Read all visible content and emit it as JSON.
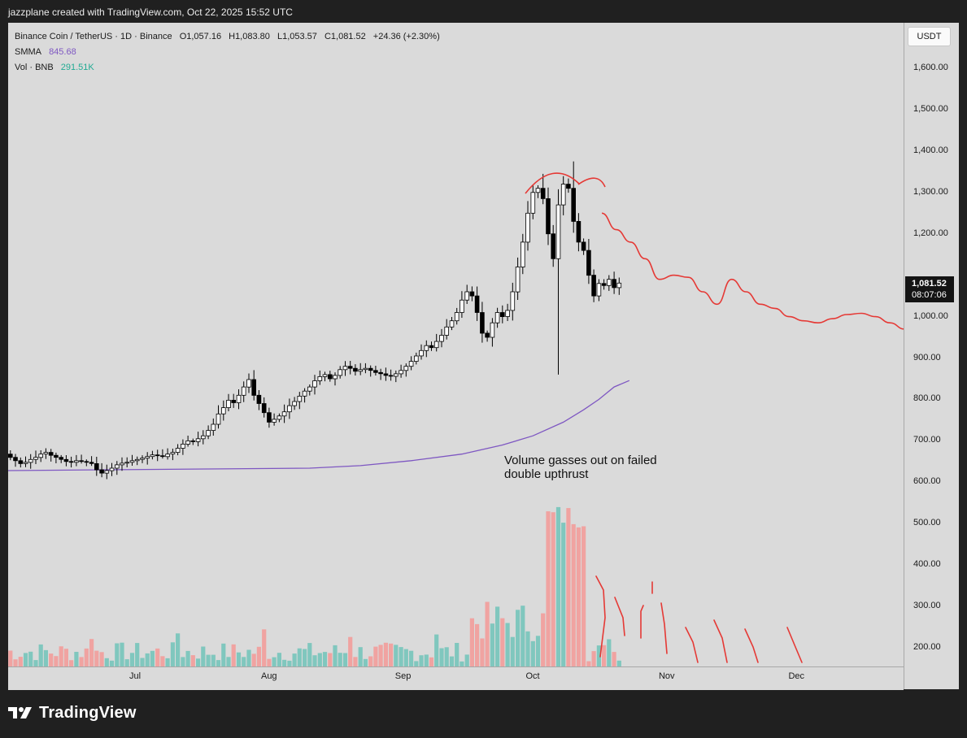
{
  "header": {
    "credit": "jazzplane created with TradingView.com, Oct 22, 2025 15:52 UTC"
  },
  "legend": {
    "symbol": "Binance Coin / TetherUS · 1D · Binance",
    "o": "O1,057.16",
    "h": "H1,083.80",
    "l": "L1,053.57",
    "c": "C1,081.52",
    "chg": "+24.36 (+2.30%)",
    "smma_label": "SMMA",
    "smma_value": "845.68",
    "vol_label": "Vol · BNB",
    "vol_value": "291.51K"
  },
  "currency_button": "USDT",
  "price_tag": {
    "price": "1,081.52",
    "countdown": "08:07:06"
  },
  "annotation": {
    "line1": "Volume gasses out on failed",
    "line2": "double upthrust"
  },
  "footer": {
    "brand": "TradingView"
  },
  "colors": {
    "bull": "#ffffff",
    "bear": "#000000",
    "smma": "#7e57c2",
    "drawing": "#e53935",
    "vol_up": "#80c7be",
    "vol_down": "#f0a3a1",
    "plot_bg": "#dadada"
  },
  "chart_data": {
    "type": "candlestick",
    "symbol": "BNBUSDT",
    "interval": "1D",
    "y_axis": {
      "ticks": [
        200,
        300,
        400,
        500,
        600,
        700,
        800,
        900,
        1000,
        1100,
        1200,
        1300,
        1400,
        1500,
        1600
      ],
      "tick_labels": [
        "200.00",
        "300.00",
        "400.00",
        "500.00",
        "600.00",
        "700.00",
        "800.00",
        "900.00",
        "1,000.00",
        "1,100.00",
        "1,200.00",
        "1,300.00",
        "1,400.00",
        "1,500.00",
        "1,600.00"
      ]
    },
    "x_axis": {
      "labels": [
        {
          "label": "Jul",
          "date": "2025-07-01"
        },
        {
          "label": "Aug",
          "date": "2025-08-01"
        },
        {
          "label": "Sep",
          "date": "2025-09-01"
        },
        {
          "label": "Oct",
          "date": "2025-10-01"
        },
        {
          "label": "Nov",
          "date": "2025-11-01"
        },
        {
          "label": "Dec",
          "date": "2025-12-01"
        }
      ]
    },
    "x_start": "2025-06-01",
    "x_end": "2025-12-31",
    "candles_close_path": [
      668,
      660,
      652,
      645,
      648,
      655,
      660,
      668,
      672,
      665,
      660,
      655,
      650,
      648,
      652,
      650,
      648,
      645,
      630,
      622,
      628,
      634,
      642,
      646,
      648,
      652,
      655,
      658,
      662,
      666,
      664,
      662,
      668,
      672,
      682,
      692,
      700,
      698,
      705,
      712,
      725,
      740,
      765,
      780,
      798,
      792,
      810,
      830,
      848,
      810,
      790,
      768,
      745,
      752,
      760,
      770,
      785,
      795,
      808,
      820,
      830,
      845,
      855,
      860,
      850,
      858,
      872,
      880,
      875,
      868,
      872,
      875,
      870,
      865,
      862,
      858,
      856,
      862,
      870,
      880,
      892,
      905,
      918,
      930,
      925,
      940,
      955,
      975,
      990,
      1010,
      1040,
      1060,
      1050,
      1010,
      960,
      950,
      985,
      1010,
      1000,
      1015,
      1060,
      1120,
      1180,
      1250,
      1300,
      1310,
      1285,
      1200,
      1140,
      1270,
      1320,
      1310,
      1230,
      1180,
      1160,
      1100,
      1050,
      1080,
      1075,
      1090,
      1070,
      1081
    ],
    "smma": {
      "label": "SMMA",
      "last": 845.68,
      "points": [
        [
          0,
          628
        ],
        [
          20,
          630
        ],
        [
          40,
          632
        ],
        [
          60,
          634
        ],
        [
          70,
          640
        ],
        [
          80,
          652
        ],
        [
          90,
          668
        ],
        [
          98,
          690
        ],
        [
          104,
          712
        ],
        [
          110,
          745
        ],
        [
          114,
          775
        ],
        [
          117,
          800
        ],
        [
          120,
          830
        ],
        [
          123,
          845.68
        ]
      ]
    },
    "volume": {
      "label": "Vol · BNB",
      "last": "291.51K",
      "unit": "K BNB"
    },
    "drawings": {
      "double_top_arcs": true,
      "projected_path": [
        1250,
        1210,
        1180,
        1140,
        1090,
        1100,
        1095,
        1060,
        1030,
        1090,
        1060,
        1030,
        1020,
        1000,
        990,
        985,
        995,
        1005,
        1008,
        1000,
        985,
        970
      ]
    },
    "annotations": [
      "Volume gasses out on failed double upthrust"
    ]
  }
}
